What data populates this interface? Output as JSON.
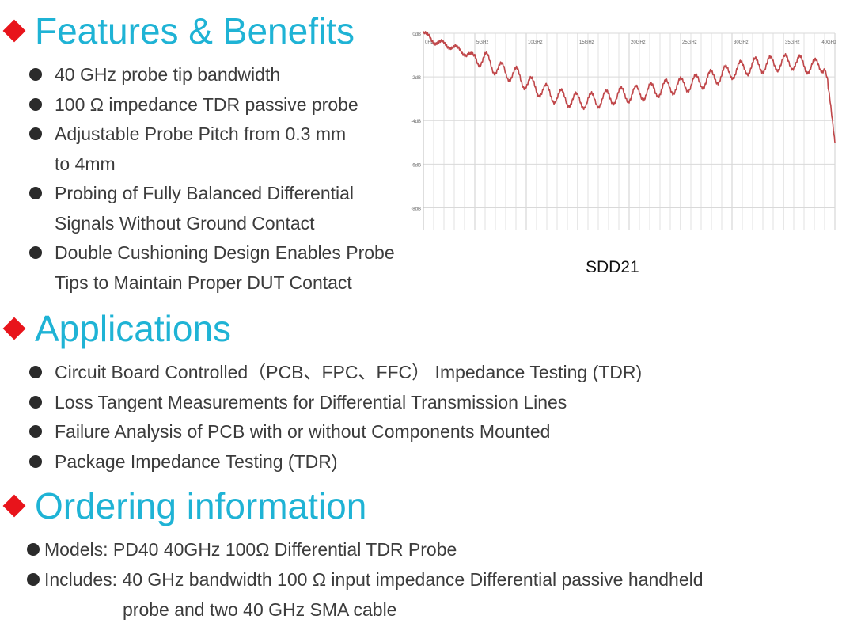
{
  "features": {
    "title": "Features & Benefits",
    "items": [
      {
        "lines": [
          "40 GHz probe tip bandwidth"
        ]
      },
      {
        "lines": [
          "100  Ω  impedance TDR passive probe"
        ]
      },
      {
        "lines": [
          "Adjustable Probe Pitch from 0.3 mm",
          "to 4mm"
        ]
      },
      {
        "lines": [
          "Probing of Fully Balanced Differential",
          "Signals Without Ground Contact"
        ]
      },
      {
        "lines": [
          "Double Cushioning Design Enables Probe",
          "Tips to Maintain Proper DUT Contact"
        ]
      }
    ]
  },
  "applications": {
    "title": "Applications",
    "items": [
      {
        "lines": [
          "Circuit Board Controlled（PCB、FPC、FFC）  Impedance Testing (TDR)"
        ]
      },
      {
        "lines": [
          "Loss Tangent Measurements for Differential Transmission Lines"
        ]
      },
      {
        "lines": [
          "Failure Analysis of PCB with or without Components Mounted"
        ]
      },
      {
        "lines": [
          "Package Impedance Testing (TDR)"
        ]
      }
    ]
  },
  "ordering": {
    "title": "Ordering information",
    "models": "Models:  PD40 40GHz 100Ω Differential TDR Probe",
    "includes_line1": "Includes: 40 GHz bandwidth 100 Ω input impedance Differential passive handheld",
    "includes_line2": "probe and two 40 GHz SMA cable"
  },
  "chart_caption": "SDD21",
  "chart_data": {
    "type": "line",
    "x_ticks": [
      "0Hz",
      "5GHz",
      "10GHz",
      "15GHz",
      "20GHz",
      "25GHz",
      "30GHz",
      "35GHz",
      "40GHz"
    ],
    "y_ticks": [
      "0dB",
      "-2dB",
      "-4dB",
      "-6dB",
      "-8dB"
    ],
    "xlim": [
      0,
      40
    ],
    "ylim": [
      -9,
      0
    ],
    "grid": true,
    "line_color": "#c0474a",
    "series": [
      {
        "x": [
          0,
          1,
          2,
          3,
          4,
          5,
          6,
          7,
          8,
          9,
          10,
          11,
          12,
          13,
          14,
          15,
          16,
          17,
          18,
          19,
          20,
          21,
          22,
          23,
          24,
          25,
          26,
          27,
          28,
          29,
          30,
          31,
          32,
          33,
          34,
          35,
          36,
          37,
          38,
          39,
          39.5,
          40
        ],
        "y": [
          0,
          -0.35,
          -0.5,
          -0.65,
          -0.9,
          -1.1,
          -1.2,
          -1.55,
          -1.8,
          -1.9,
          -2.25,
          -2.5,
          -2.7,
          -2.9,
          -3.0,
          -3.1,
          -3.1,
          -3.05,
          -2.95,
          -2.85,
          -2.8,
          -2.75,
          -2.65,
          -2.55,
          -2.45,
          -2.4,
          -2.3,
          -2.2,
          -2.05,
          -1.9,
          -1.75,
          -1.6,
          -1.5,
          -1.45,
          -1.4,
          -1.35,
          -1.3,
          -1.45,
          -1.55,
          -1.4,
          -3.0,
          -5.0
        ]
      }
    ]
  }
}
